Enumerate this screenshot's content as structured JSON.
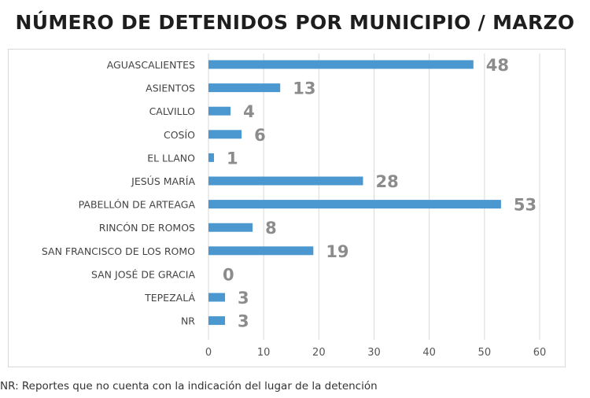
{
  "chart_data": {
    "type": "bar",
    "orientation": "horizontal",
    "title": "NÚMERO DE DETENIDOS POR MUNICIPIO / MARZO",
    "categories": [
      "AGUASCALIENTES",
      "ASIENTOS",
      "CALVILLO",
      "COSÍO",
      "EL LLANO",
      "JESÚS MARÍA",
      "PABELLÓN DE ARTEAGA",
      "RINCÓN DE ROMOS",
      "SAN FRANCISCO DE LOS ROMO",
      "SAN JOSÉ DE GRACIA",
      "TEPEZALÁ",
      "NR"
    ],
    "values": [
      48,
      13,
      4,
      6,
      1,
      28,
      53,
      8,
      19,
      0,
      3,
      3
    ],
    "xlim": [
      0,
      60
    ],
    "xticks": [
      0,
      10,
      20,
      30,
      40,
      50,
      60
    ],
    "grid": true,
    "legend": "none",
    "bar_color": "#4a98cf",
    "label_color": "#8c8c8c"
  },
  "footnote": "NR: Reportes que no cuenta con la indicación del lugar de la detención"
}
